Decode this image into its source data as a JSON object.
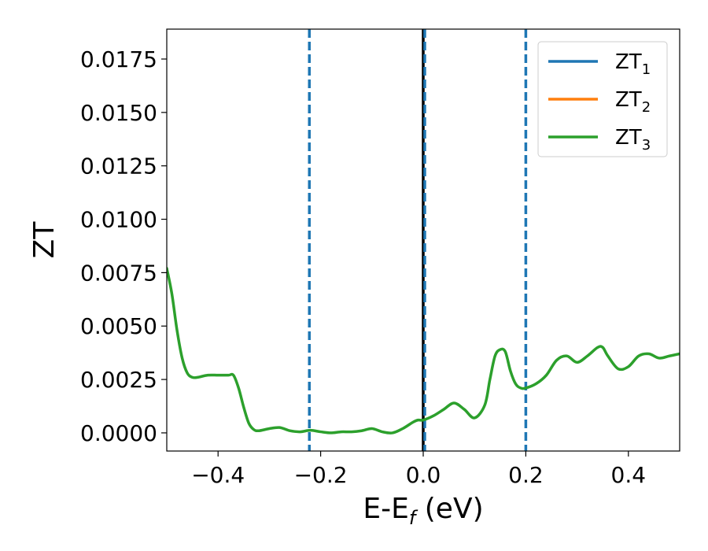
{
  "chart_data": {
    "type": "line",
    "title": "",
    "xlabel": {
      "base": "E-E",
      "sub": "f",
      "rest": " (eV)"
    },
    "ylabel": "ZT",
    "xlim": [
      -0.5,
      0.5
    ],
    "ylim": [
      -0.00085,
      0.0189
    ],
    "xticks": [
      -0.4,
      -0.2,
      0.0,
      0.2,
      0.4
    ],
    "xtick_labels": [
      "−0.4",
      "−0.2",
      "0.0",
      "0.2",
      "0.4"
    ],
    "yticks": [
      0.0,
      0.0025,
      0.005,
      0.0075,
      0.01,
      0.0125,
      0.015,
      0.0175
    ],
    "ytick_labels": [
      "0.0000",
      "0.0025",
      "0.0050",
      "0.0075",
      "0.0100",
      "0.0125",
      "0.0150",
      "0.0175"
    ],
    "grid": false,
    "legend_position": "top-right",
    "vertical_lines": [
      {
        "x": -0.222,
        "style": "dashed",
        "color": "#1f77b4"
      },
      {
        "x": 0.0,
        "style": "solid",
        "color": "#000000"
      },
      {
        "x": 0.003,
        "style": "dashed",
        "color": "#1f77b4"
      },
      {
        "x": 0.2,
        "style": "dashed",
        "color": "#1f77b4"
      }
    ],
    "series": [
      {
        "name": {
          "base": "ZT",
          "sub": "1"
        },
        "color": "#1f77b4",
        "x": [],
        "y": []
      },
      {
        "name": {
          "base": "ZT",
          "sub": "2"
        },
        "color": "#ff7f0e",
        "x": [],
        "y": []
      },
      {
        "name": {
          "base": "ZT",
          "sub": "3"
        },
        "color": "#2ca02c",
        "x": [
          -0.5,
          -0.49,
          -0.48,
          -0.47,
          -0.46,
          -0.45,
          -0.44,
          -0.42,
          -0.4,
          -0.38,
          -0.37,
          -0.36,
          -0.35,
          -0.34,
          -0.33,
          -0.32,
          -0.3,
          -0.28,
          -0.26,
          -0.24,
          -0.22,
          -0.2,
          -0.18,
          -0.16,
          -0.14,
          -0.12,
          -0.1,
          -0.08,
          -0.06,
          -0.04,
          -0.02,
          -0.01,
          0.0,
          0.02,
          0.04,
          0.06,
          0.08,
          0.1,
          0.12,
          0.13,
          0.14,
          0.15,
          0.16,
          0.17,
          0.18,
          0.19,
          0.2,
          0.22,
          0.24,
          0.26,
          0.28,
          0.3,
          0.32,
          0.34,
          0.35,
          0.36,
          0.38,
          0.4,
          0.42,
          0.44,
          0.46,
          0.48,
          0.5
        ],
        "y": [
          0.0077,
          0.0065,
          0.0048,
          0.0035,
          0.0028,
          0.0026,
          0.0026,
          0.0027,
          0.0027,
          0.0027,
          0.0027,
          0.0021,
          0.0012,
          0.00045,
          0.00015,
          0.0001,
          0.0002,
          0.00025,
          0.0001,
          5e-05,
          0.00012,
          5e-05,
          0.0,
          5e-05,
          5e-05,
          0.0001,
          0.0002,
          5e-05,
          0.0,
          0.0002,
          0.0005,
          0.0006,
          0.0006,
          0.0008,
          0.0011,
          0.0014,
          0.0011,
          0.0007,
          0.0013,
          0.0025,
          0.0036,
          0.0039,
          0.0038,
          0.0029,
          0.0023,
          0.0021,
          0.0021,
          0.0023,
          0.0027,
          0.0034,
          0.0036,
          0.0033,
          0.0036,
          0.004,
          0.004,
          0.0036,
          0.003,
          0.0031,
          0.0036,
          0.0037,
          0.0035,
          0.0036,
          0.0037
        ]
      }
    ]
  }
}
